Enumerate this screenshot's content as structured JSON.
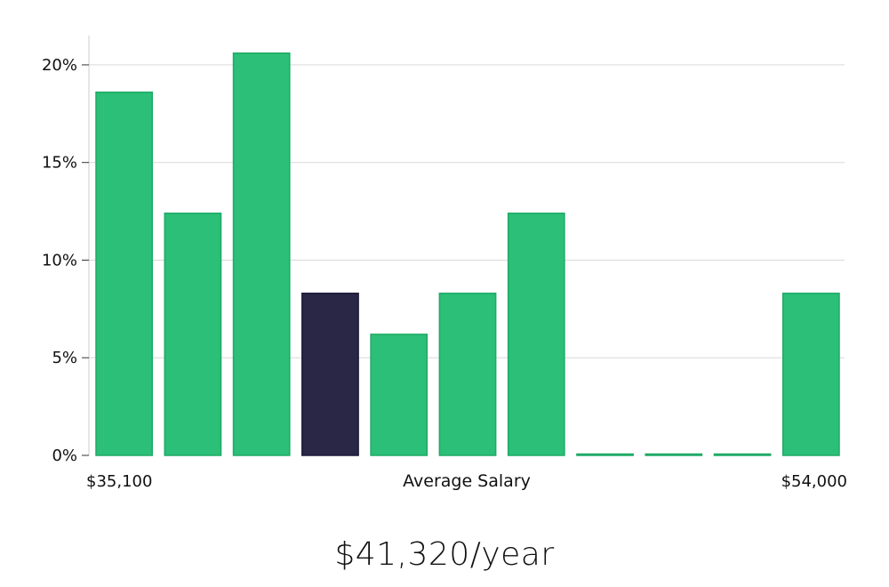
{
  "caption": "$41,320/year",
  "colors": {
    "bar": "#2bbf77",
    "bar_stroke": "#1faa66",
    "highlight": "#2a2746",
    "highlight_stroke": "#1b1838",
    "grid": "#d9d9d9",
    "axis": "#cccccc"
  },
  "chart_data": {
    "type": "bar",
    "title": "",
    "xlabel": "Average Salary",
    "ylabel": "",
    "x_range_labels": {
      "min": "$35,100",
      "max": "$54,000"
    },
    "ylim": [
      0,
      21.5
    ],
    "yticks": [
      0,
      5,
      10,
      15,
      20
    ],
    "ytick_labels": [
      "0%",
      "5%",
      "10%",
      "15%",
      "20%"
    ],
    "grid": true,
    "values": [
      18.6,
      12.4,
      20.6,
      8.3,
      6.2,
      8.3,
      12.4,
      0,
      0,
      0,
      8.3
    ],
    "highlight_index": 3
  }
}
